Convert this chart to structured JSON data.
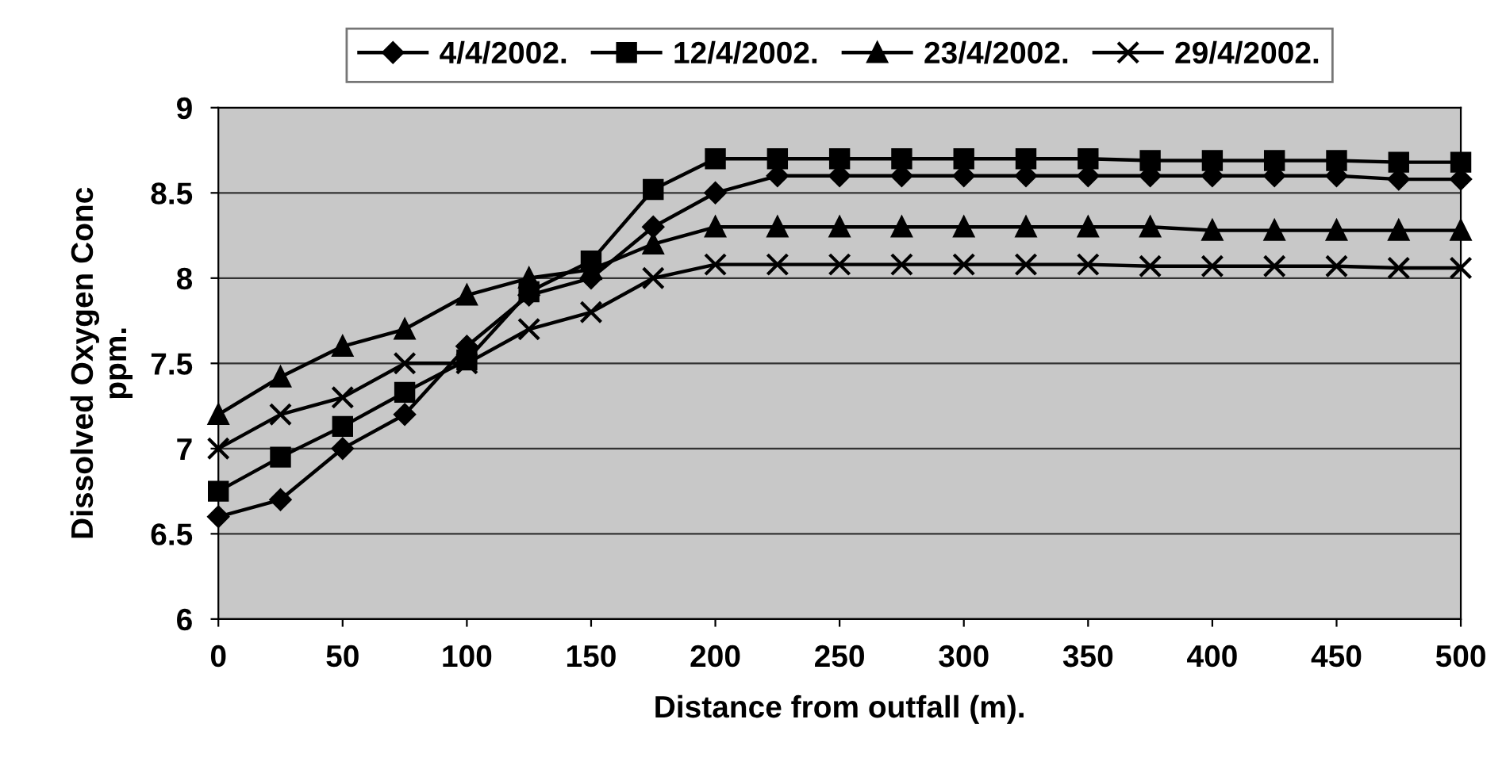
{
  "chart_data": {
    "type": "line",
    "xlabel": "Distance from outfall (m).",
    "ylabel": "Dissolved Oxygen Conc\nppm.",
    "x": [
      0,
      25,
      50,
      75,
      100,
      125,
      150,
      175,
      200,
      225,
      250,
      275,
      300,
      325,
      350,
      375,
      400,
      425,
      450,
      475,
      500
    ],
    "xlim": [
      0,
      500
    ],
    "xticks": [
      0,
      50,
      100,
      150,
      200,
      250,
      300,
      350,
      400,
      450,
      500
    ],
    "ylim": [
      6,
      9
    ],
    "yticks": [
      6,
      6.5,
      7,
      7.5,
      8,
      8.5,
      9
    ],
    "grid": "y",
    "legend": "top",
    "line_style": "solid",
    "series": [
      {
        "name": "4/4/2002.",
        "color": "#000000",
        "marker": "diamond",
        "values": [
          6.6,
          6.7,
          7.0,
          7.2,
          7.6,
          7.9,
          8.0,
          8.3,
          8.5,
          8.6,
          8.6,
          8.6,
          8.6,
          8.6,
          8.6,
          8.6,
          8.6,
          8.6,
          8.6,
          8.58,
          8.58
        ]
      },
      {
        "name": "12/4/2002.",
        "color": "#000000",
        "marker": "square",
        "values": [
          6.75,
          6.95,
          7.13,
          7.33,
          7.52,
          7.92,
          8.1,
          8.52,
          8.7,
          8.7,
          8.7,
          8.7,
          8.7,
          8.7,
          8.7,
          8.69,
          8.69,
          8.69,
          8.69,
          8.68,
          8.68
        ]
      },
      {
        "name": "23/4/2002.",
        "color": "#000000",
        "marker": "triangle",
        "values": [
          7.2,
          7.42,
          7.6,
          7.7,
          7.9,
          8.0,
          8.05,
          8.2,
          8.3,
          8.3,
          8.3,
          8.3,
          8.3,
          8.3,
          8.3,
          8.3,
          8.28,
          8.28,
          8.28,
          8.28,
          8.28
        ]
      },
      {
        "name": "29/4/2002.",
        "color": "#000000",
        "marker": "cross",
        "values": [
          7.0,
          7.2,
          7.3,
          7.5,
          7.5,
          7.7,
          7.8,
          8.0,
          8.08,
          8.08,
          8.08,
          8.08,
          8.08,
          8.08,
          8.08,
          8.07,
          8.07,
          8.07,
          8.07,
          8.06,
          8.06
        ]
      }
    ]
  }
}
